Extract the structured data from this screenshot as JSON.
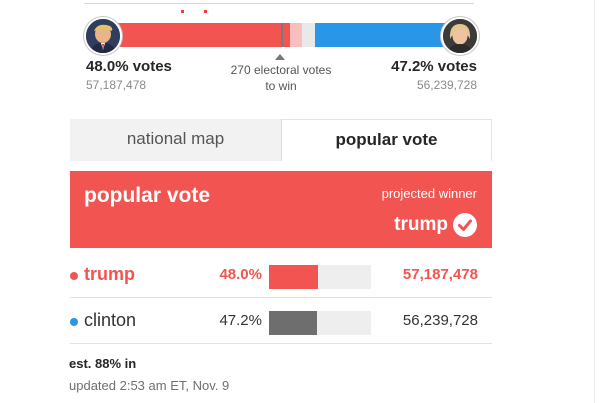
{
  "electoral": {
    "trump_ev_fraction": 0.533,
    "clinton_ev_fraction": 0.392,
    "threshold_label_line1": "270 electoral votes",
    "threshold_label_line2": "to win"
  },
  "candidates_summary": {
    "left": {
      "votes_pct": "48.0% votes",
      "votes_count": "57,187,478"
    },
    "right": {
      "votes_pct": "47.2% votes",
      "votes_count": "56,239,728"
    }
  },
  "tabs": [
    {
      "label": "national map",
      "active": false
    },
    {
      "label": "popular vote",
      "active": true
    }
  ],
  "winner": {
    "title": "popular vote",
    "subtitle": "projected winner",
    "name": "trump"
  },
  "results": [
    {
      "name": "trump",
      "pct": "48.0%",
      "fraction": 0.48,
      "total": "57,187,478",
      "color": "#f15451",
      "text_color": "#f15451",
      "bold": true
    },
    {
      "name": "clinton",
      "pct": "47.2%",
      "fraction": 0.472,
      "total": "56,239,728",
      "color": "#2996e7",
      "bar_color": "#6e6e6e",
      "text_color": "#333333",
      "bold": false
    }
  ],
  "footer": {
    "estimate": "est. 88% in",
    "updated": "updated 2:53 am ET, Nov. 9"
  },
  "colors": {
    "gop_red": "#f15451",
    "dem_blue": "#2996e7"
  }
}
